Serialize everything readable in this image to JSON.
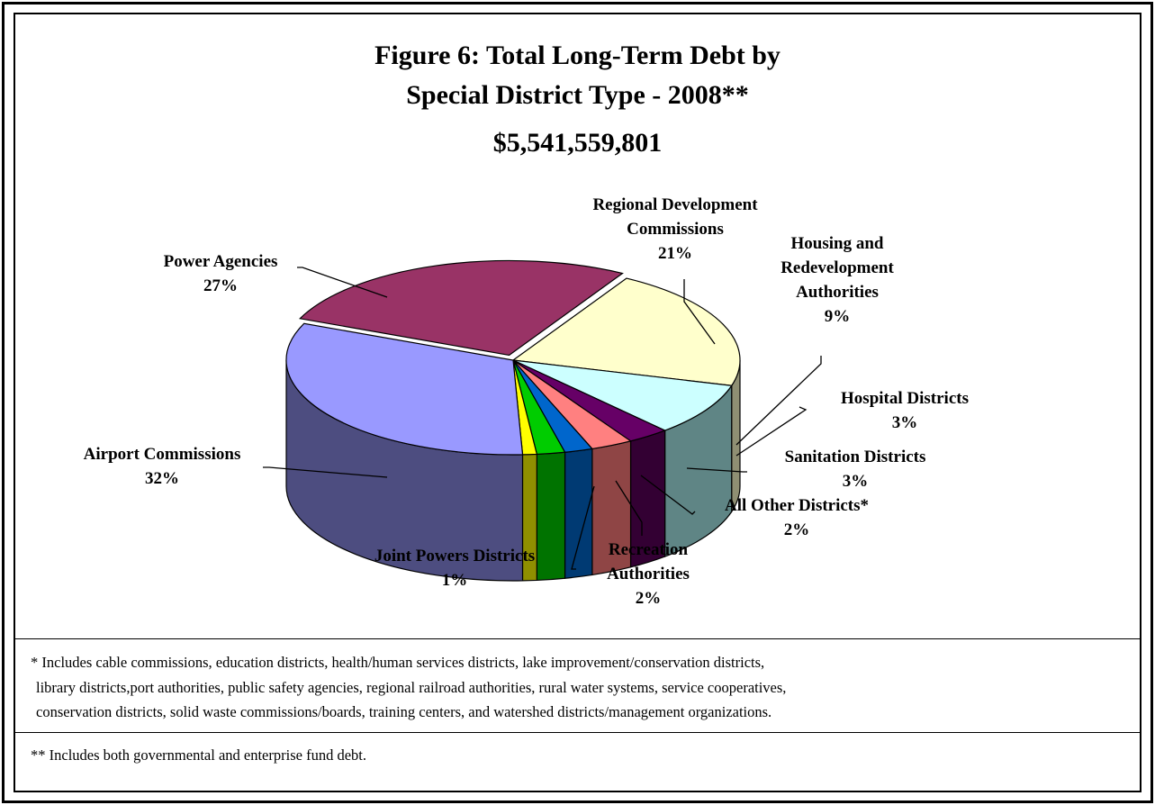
{
  "title_line1": "Figure 6:  Total Long-Term Debt by",
  "title_line2": "Special District Type - 2008**",
  "total": "$5,541,559,801",
  "chart_data": {
    "type": "pie",
    "title": "Figure 6:  Total Long-Term Debt by Special District Type - 2008**",
    "subtitle": "$5,541,559,801",
    "three_d": true,
    "exploded_slice": "Power Agencies",
    "slices": [
      {
        "name": "Regional Development Commissions",
        "name_lines": [
          "Regional Development",
          "Commissions"
        ],
        "pct_label": "21%",
        "value": 21,
        "color": "#ffffcc",
        "side_color": "#8f8f73"
      },
      {
        "name": "Housing and Redevelopment Authorities",
        "name_lines": [
          "Housing and",
          "Redevelopment",
          "Authorities"
        ],
        "pct_label": "9%",
        "value": 9,
        "color": "#ccffff",
        "side_color": "#5f8585"
      },
      {
        "name": "Hospital Districts",
        "name_lines": [
          "Hospital Districts"
        ],
        "pct_label": "3%",
        "value": 3,
        "color": "#660066",
        "side_color": "#330033"
      },
      {
        "name": "Sanitation Districts",
        "name_lines": [
          "Sanitation Districts"
        ],
        "pct_label": "3%",
        "value": 3,
        "color": "#ff8080",
        "side_color": "#8f4545"
      },
      {
        "name": "All Other Districts*",
        "name_lines": [
          "All Other Districts*"
        ],
        "pct_label": "2%",
        "value": 2,
        "color": "#0066cc",
        "side_color": "#003a73"
      },
      {
        "name": "Recreation Authorities",
        "name_lines": [
          "Recreation",
          "Authorities"
        ],
        "pct_label": "2%",
        "value": 2,
        "color": "#00cc00",
        "side_color": "#007300"
      },
      {
        "name": "Joint Powers Districts",
        "name_lines": [
          "Joint Powers Districts"
        ],
        "pct_label": "1%",
        "value": 1,
        "color": "#ffff00",
        "side_color": "#8f8f00"
      },
      {
        "name": "Airport Commissions",
        "name_lines": [
          "Airport Commissions"
        ],
        "pct_label": "32%",
        "value": 32,
        "color": "#9999ff",
        "side_color": "#4d4d80"
      },
      {
        "name": "Power Agencies",
        "name_lines": [
          "Power Agencies"
        ],
        "pct_label": "27%",
        "value": 27,
        "color": "#993366",
        "side_color": "#4d1a33"
      }
    ]
  },
  "footnotes": {
    "line1": "* Includes cable commissions, education districts, health/human services districts, lake improvement/conservation districts,",
    "line2": "library districts,port authorities, public safety agencies, regional railroad authorities, rural water systems, service cooperatives,",
    "line3": "conservation districts, solid waste commissions/boards, training centers, and watershed districts/management organizations.",
    "line4": "** Includes both governmental and enterprise fund debt."
  }
}
